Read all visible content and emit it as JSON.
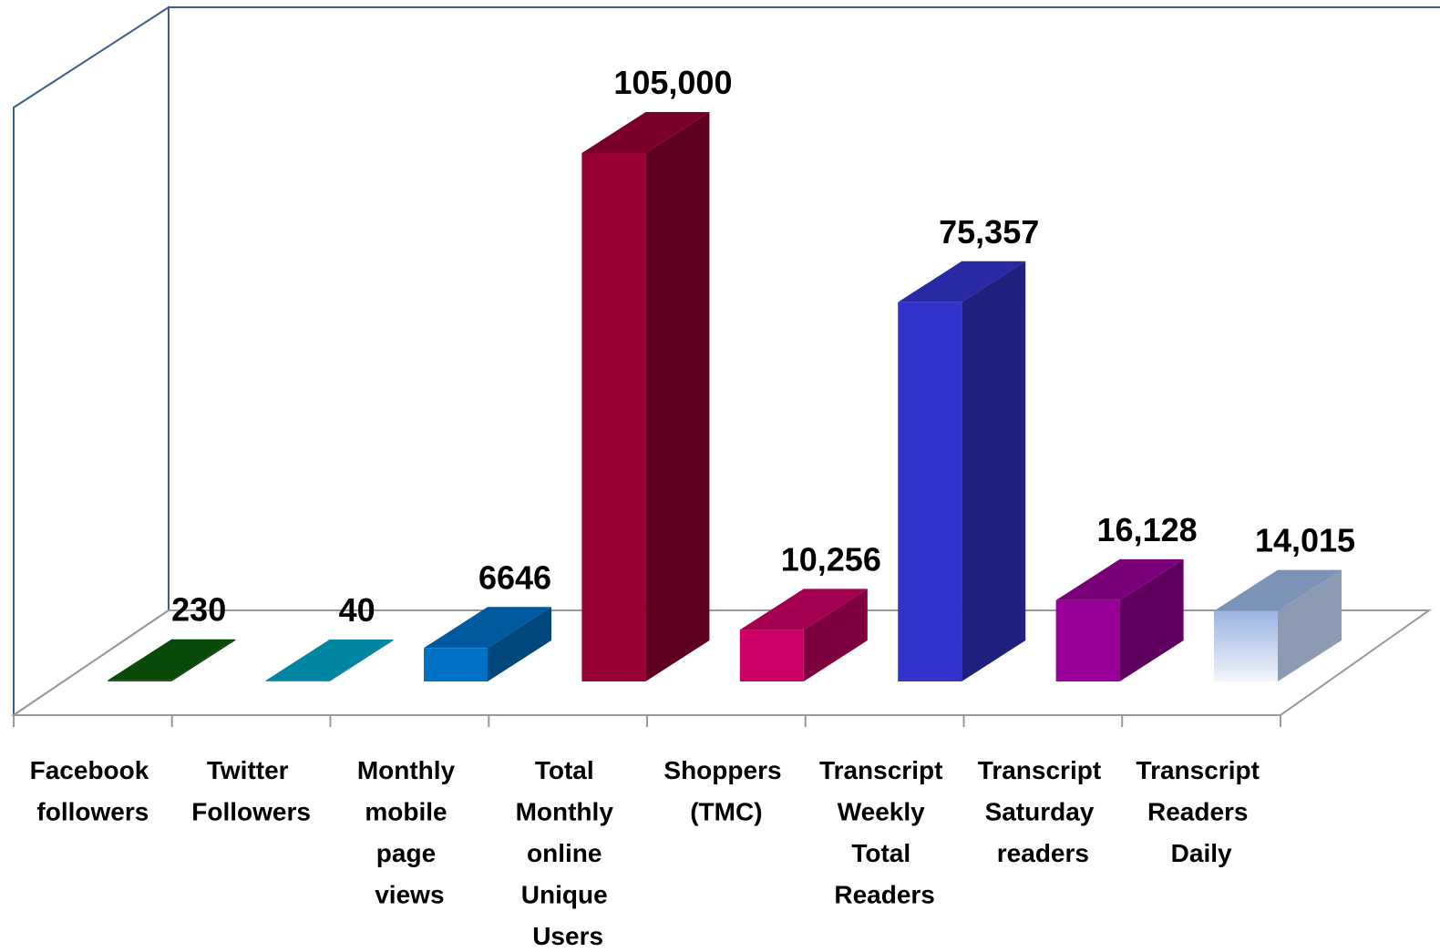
{
  "chart_data": {
    "type": "bar3d",
    "categories": [
      "Facebook followers",
      "Twitter Followers",
      "Monthly mobile page views",
      "Total Monthly online Unique Users",
      "Shoppers (TMC)",
      "Transcript Weekly Total Readers",
      "Transcript Saturday readers",
      "Transcript Readers Daily"
    ],
    "values": [
      230,
      40,
      6646,
      105000,
      10256,
      75357,
      16128,
      14015
    ],
    "value_labels": [
      "230",
      "40",
      "6646",
      "105,000",
      "10,256",
      "75,357",
      "16,128",
      "14,015"
    ],
    "colors": [
      "#0b5d0b",
      "#00a6cc",
      "#0072c6",
      "#990033",
      "#cc0066",
      "#3333cc",
      "#990099",
      "#b8cbec"
    ],
    "ylim": [
      0,
      110000
    ]
  }
}
